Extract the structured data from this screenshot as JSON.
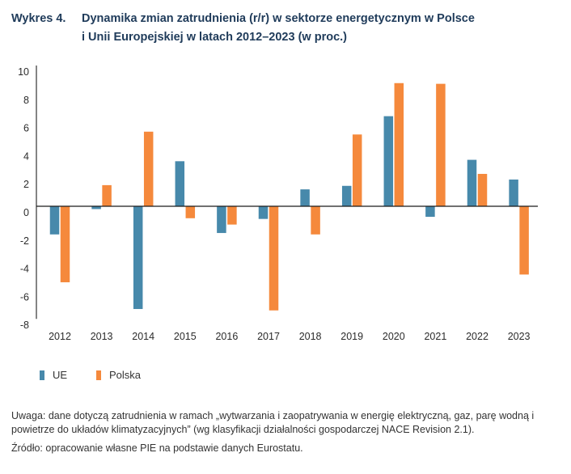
{
  "header": {
    "figure_number": "Wykres 4.",
    "title_line1": "Dynamika zmian zatrudnienia (r/r) w sektorze energetycznym w Polsce",
    "title_line2": "i Unii Europejskiej w latach 2012–2023 (w proc.)"
  },
  "chart_data": {
    "type": "bar",
    "title": "Dynamika zmian zatrudnienia (r/r) w sektorze energetycznym w Polsce i Unii Europejskiej w latach 2012–2023 (w proc.)",
    "xlabel": "",
    "ylabel": "",
    "categories": [
      "2012",
      "2013",
      "2014",
      "2015",
      "2016",
      "2017",
      "2018",
      "2019",
      "2020",
      "2021",
      "2022",
      "2023"
    ],
    "series": [
      {
        "name": "UE",
        "color": "#4789ab",
        "values": [
          -2.0,
          -0.2,
          -7.3,
          3.2,
          -1.9,
          -0.9,
          1.2,
          1.45,
          6.4,
          -0.75,
          3.3,
          1.9
        ]
      },
      {
        "name": "Polska",
        "color": "#f5893c",
        "values": [
          -5.4,
          1.5,
          5.3,
          -0.85,
          -1.3,
          -7.4,
          -2.0,
          5.1,
          8.75,
          8.7,
          2.3,
          -4.85
        ]
      }
    ],
    "ylim": [
      -8,
      10
    ],
    "yticks": [
      10,
      8,
      6,
      4,
      2,
      0,
      -2,
      -4,
      -6,
      -8
    ],
    "grid": false,
    "legend_position": "bottom-left"
  },
  "legend": {
    "items": [
      {
        "label": "UE",
        "color": "#4789ab"
      },
      {
        "label": "Polska",
        "color": "#f5893c"
      }
    ]
  },
  "notes": {
    "note": "Uwaga: dane dotyczą zatrudnienia w ramach „wytwarzania i zaopatrywania w energię elektryczną, gaz, parę wodną i powietrze do układów klimatyzacyjnych” (wg klasyfikacji działalności gospodarczej NACE Revision 2.1).",
    "source": "Źródło: opracowanie własne PIE na podstawie danych Eurostatu."
  }
}
